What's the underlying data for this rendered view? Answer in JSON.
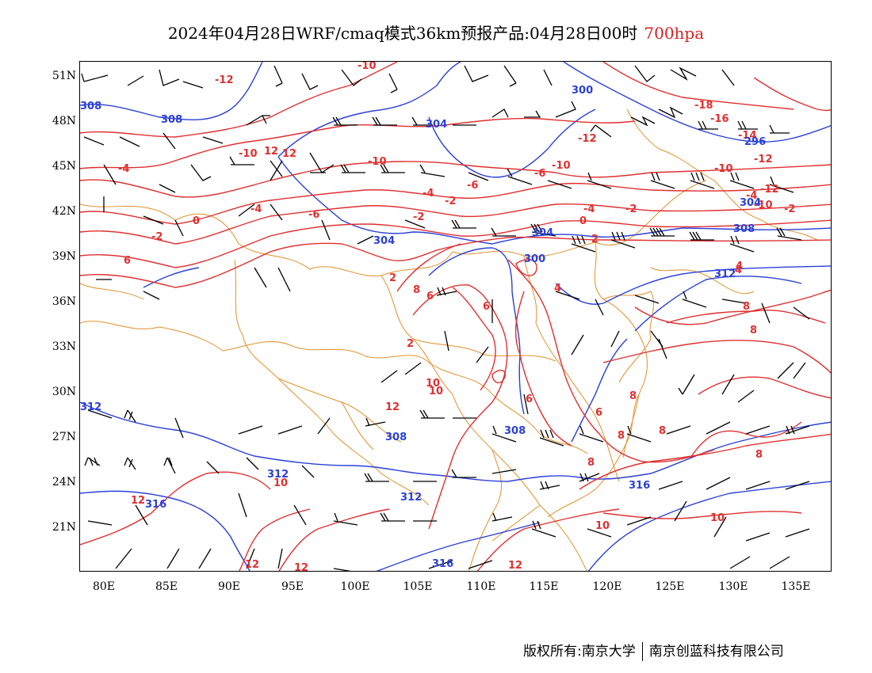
{
  "title": {
    "main": "2024年04月28日WRF/cmaq模式36km预报产品:04月28日00时",
    "level": "700hpa"
  },
  "axes": {
    "lat_labels": [
      "51N",
      "48N",
      "45N",
      "42N",
      "39N",
      "36N",
      "33N",
      "30N",
      "27N",
      "24N",
      "21N"
    ],
    "lon_labels": [
      "80E",
      "85E",
      "90E",
      "95E",
      "100E",
      "105E",
      "110E",
      "115E",
      "120E",
      "125E",
      "130E",
      "135E"
    ]
  },
  "contours": {
    "temperature_color": "#e03030",
    "height_color": "#2a40d8",
    "border_color": "#e0902a",
    "temperature_labels": [
      "-12",
      "-10",
      "-18",
      "-16",
      "-14",
      "-12",
      "-10",
      "-12",
      "-10",
      "12",
      "-4",
      "-10",
      "-6",
      "-10",
      "-12",
      "-10",
      "-4",
      "-6",
      "-6",
      "-4",
      "-2",
      "-4",
      "-2",
      "-4",
      "-2",
      "0",
      "-2",
      "0",
      "2",
      "-2",
      "4",
      "6",
      "2",
      "8",
      "6",
      "6",
      "4",
      "4",
      "8",
      "8",
      "6",
      "2",
      "10",
      "12",
      "8",
      "6",
      "8",
      "8",
      "8",
      "12",
      "10",
      "10",
      "12",
      "12",
      "12",
      "12",
      "10",
      "10",
      "8"
    ],
    "height_labels": [
      "308",
      "308",
      "304",
      "300",
      "296",
      "304",
      "304",
      "300",
      "304",
      "308",
      "312",
      "312",
      "308",
      "308",
      "312",
      "312",
      "316",
      "316",
      "316"
    ]
  },
  "footer": {
    "copyright": "版权所有:南京大学",
    "company": "南京创蓝科技有限公司"
  }
}
